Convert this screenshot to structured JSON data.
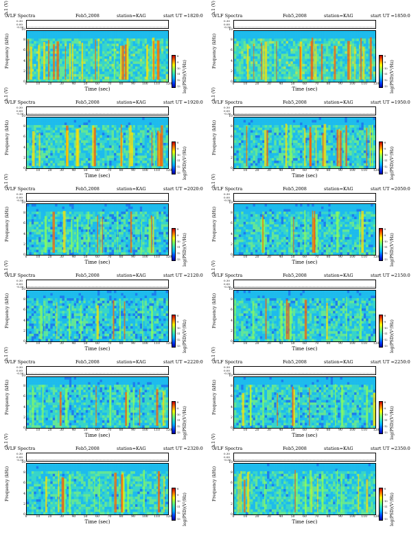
{
  "figure": {
    "amp_label": "ch.1 (V)",
    "amp_ticks": [
      "0.30",
      "0.00",
      "-0.30"
    ],
    "freq_label": "Frequency (kHz)",
    "freq_ticks": [
      "0",
      "2",
      "4",
      "6",
      "8",
      "10"
    ],
    "time_label": "Time (sec)",
    "time_ticks": [
      "0",
      "10",
      "20",
      "30",
      "40",
      "50",
      "60",
      "70",
      "80",
      "90",
      "100",
      "110",
      "120"
    ],
    "colorbar_label": "log(PSD)(V²/Hz)",
    "colorbar_ticks": [
      "-8",
      "-9",
      "-10",
      "-11",
      "-12",
      "-13"
    ]
  },
  "panels": [
    {
      "title": "VLF Spectra",
      "date": "Feb5,2008",
      "station": "station=KAG",
      "start": "start UT =1820:0"
    },
    {
      "title": "VLF Spectra",
      "date": "Feb5,2008",
      "station": "station=KAG",
      "start": "start UT =1850:0"
    },
    {
      "title": "VLF Spectra",
      "date": "Feb5,2008",
      "station": "station=KAG",
      "start": "start UT =1920:0"
    },
    {
      "title": "VLF Spectra",
      "date": "Feb5,2008",
      "station": "station=KAG",
      "start": "start UT =1950:0"
    },
    {
      "title": "VLF Spectra",
      "date": "Feb5,2008",
      "station": "station=KAG",
      "start": "start UT =2020:0"
    },
    {
      "title": "VLF Spectra",
      "date": "Feb5,2008",
      "station": "station=KAG",
      "start": "start UT =2050:0"
    },
    {
      "title": "VLF Spectra",
      "date": "Feb5,2008",
      "station": "station=KAG",
      "start": "start UT =2120:0"
    },
    {
      "title": "VLF Spectra",
      "date": "Feb5,2008",
      "station": "station=KAG",
      "start": "start UT =2150:0"
    },
    {
      "title": "VLF Spectra",
      "date": "Feb5,2008",
      "station": "station=KAG",
      "start": "start UT =2220:0"
    },
    {
      "title": "VLF Spectra",
      "date": "Feb5,2008",
      "station": "station=KAG",
      "start": "start UT =2250:0"
    },
    {
      "title": "VLF Spectra",
      "date": "Feb5,2008",
      "station": "station=KAG",
      "start": "start UT =2320:0"
    },
    {
      "title": "VLF Spectra",
      "date": "Feb5,2008",
      "station": "station=KAG",
      "start": "start UT =2350:0"
    }
  ],
  "chart_data": {
    "type": "heatmap",
    "panel_count": 12,
    "x_axis": {
      "label": "Time (sec)",
      "range": [
        0,
        120
      ]
    },
    "y_axis": {
      "label": "Frequency (kHz)",
      "range": [
        0,
        10
      ]
    },
    "colorbar": {
      "label": "log(PSD)(V²/Hz)",
      "range": [
        -13,
        -8
      ],
      "colors": [
        "#0000a0",
        "#0040ff",
        "#00b0ff",
        "#30e0c0",
        "#80ff60",
        "#ffff00",
        "#ff8000",
        "#c00000"
      ]
    },
    "spectra_activity": [
      {
        "start": "1820:0",
        "level": 0.95,
        "background": 0.55
      },
      {
        "start": "1850:0",
        "level": 0.9,
        "background": 0.55
      },
      {
        "start": "1920:0",
        "level": 0.8,
        "background": 0.45
      },
      {
        "start": "1950:0",
        "level": 0.75,
        "background": 0.4
      },
      {
        "start": "2020:0",
        "level": 0.5,
        "background": 0.35
      },
      {
        "start": "2050:0",
        "level": 0.45,
        "background": 0.35
      },
      {
        "start": "2120:0",
        "level": 0.35,
        "background": 0.3
      },
      {
        "start": "2150:0",
        "level": 0.35,
        "background": 0.4
      },
      {
        "start": "2220:0",
        "level": 0.45,
        "background": 0.35
      },
      {
        "start": "2250:0",
        "level": 0.4,
        "background": 0.35
      },
      {
        "start": "2320:0",
        "level": 0.6,
        "background": 0.45
      },
      {
        "start": "2350:0",
        "level": 0.6,
        "background": 0.45
      }
    ]
  }
}
